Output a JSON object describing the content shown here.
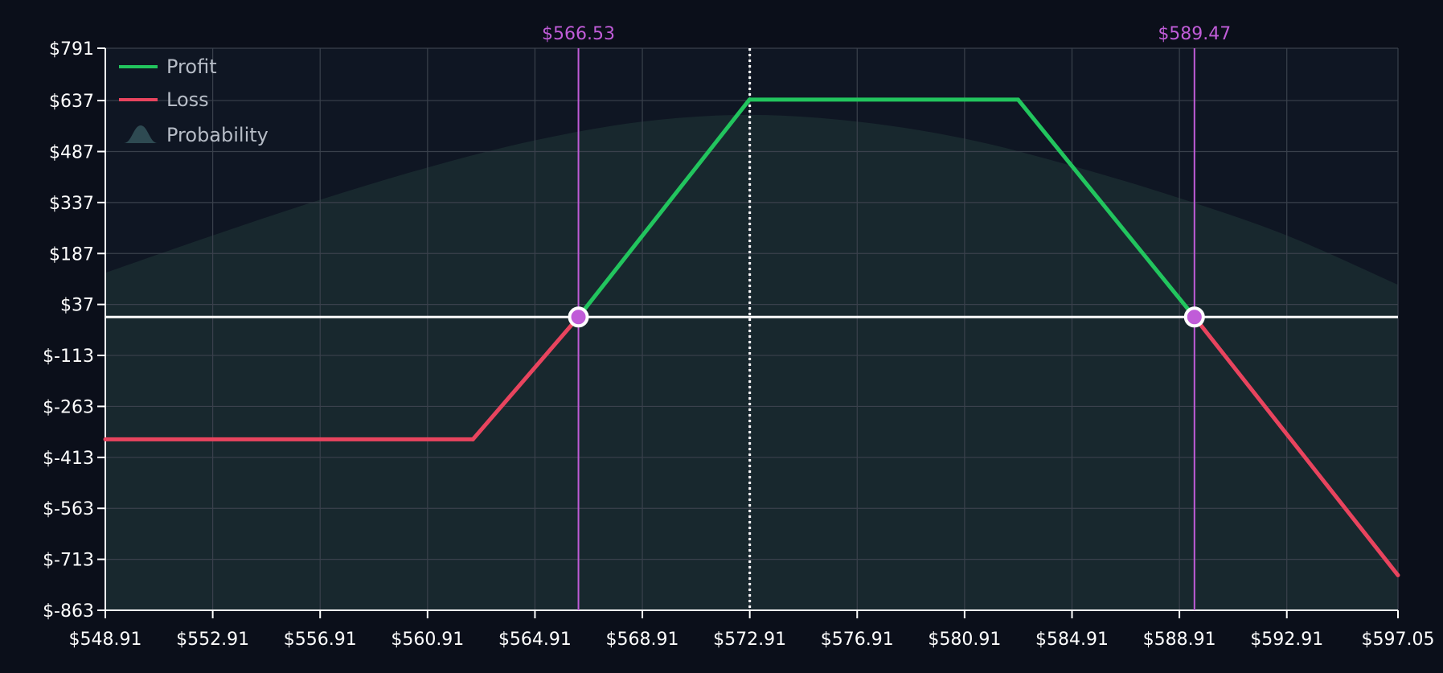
{
  "chart_data": {
    "type": "line",
    "title": "",
    "xlabel": "",
    "ylabel": "",
    "xlim": [
      548.91,
      597.05
    ],
    "ylim": [
      -863,
      791
    ],
    "x_tick_labels": [
      "$548.91",
      "$552.91",
      "$556.91",
      "$560.91",
      "$564.91",
      "$568.91",
      "$572.91",
      "$576.91",
      "$580.91",
      "$584.91",
      "$588.91",
      "$592.91",
      "$597.05"
    ],
    "x_ticks": [
      548.91,
      552.91,
      556.91,
      560.91,
      564.91,
      568.91,
      572.91,
      576.91,
      580.91,
      584.91,
      588.91,
      592.91,
      597.05
    ],
    "y_tick_labels": [
      "$791",
      "$637",
      "$487",
      "$337",
      "$187",
      "$37",
      "$-113",
      "$-263",
      "$-413",
      "$-563",
      "$-713",
      "$-863"
    ],
    "y_ticks": [
      791,
      637,
      487,
      337,
      187,
      37,
      -113,
      -263,
      -413,
      -563,
      -713,
      -863
    ],
    "grid": true,
    "legend_position": "top-left",
    "legend": [
      {
        "label": "Profit",
        "color": "#22c55e",
        "kind": "line"
      },
      {
        "label": "Loss",
        "color": "#e8445e",
        "kind": "line"
      },
      {
        "label": "Probability",
        "color": "#2e4a52",
        "kind": "area"
      }
    ],
    "payoff": [
      {
        "x": 548.91,
        "y": -360
      },
      {
        "x": 562.6,
        "y": -360
      },
      {
        "x": 566.53,
        "y": 0
      },
      {
        "x": 572.9,
        "y": 640
      },
      {
        "x": 582.9,
        "y": 640
      },
      {
        "x": 589.47,
        "y": 0
      },
      {
        "x": 597.05,
        "y": -760
      }
    ],
    "current_price": 572.91,
    "breakevens": [
      {
        "x": 566.53,
        "label": "$566.53"
      },
      {
        "x": 589.47,
        "label": "$589.47"
      }
    ],
    "probability_curve": {
      "description_units": "same as y axis (scaled)",
      "points": [
        {
          "x": 548.91,
          "y": 130
        },
        {
          "x": 552.91,
          "y": 240
        },
        {
          "x": 556.91,
          "y": 345
        },
        {
          "x": 560.91,
          "y": 440
        },
        {
          "x": 564.91,
          "y": 520
        },
        {
          "x": 568.91,
          "y": 575
        },
        {
          "x": 572.91,
          "y": 595
        },
        {
          "x": 576.91,
          "y": 575
        },
        {
          "x": 580.91,
          "y": 525
        },
        {
          "x": 584.91,
          "y": 445
        },
        {
          "x": 588.91,
          "y": 350
        },
        {
          "x": 592.91,
          "y": 240
        },
        {
          "x": 597.05,
          "y": 95
        }
      ]
    },
    "colors": {
      "background": "#0b0f1a",
      "plot_background": "#0f1623",
      "grid": "#3a414c",
      "axis": "#ffffff",
      "profit": "#22c55e",
      "loss": "#e8445e",
      "breakeven": "#c05cd8",
      "zero_line": "#ffffff",
      "probability_fill": "#1a2a30"
    }
  }
}
